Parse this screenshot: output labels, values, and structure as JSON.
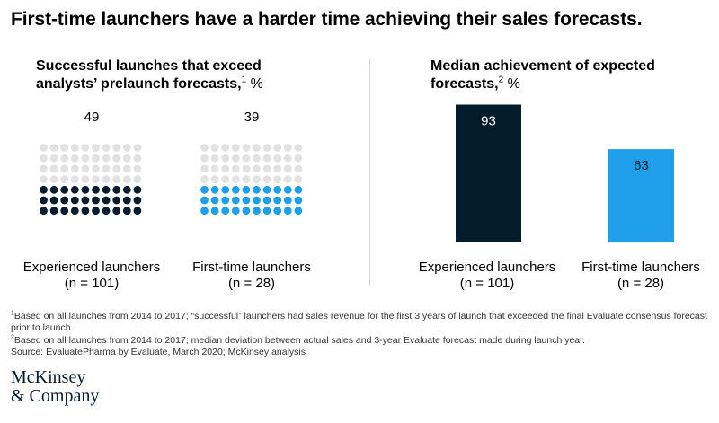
{
  "headline": "First-time launchers have a harder time achieving their sales forecasts.",
  "colors": {
    "dark": "#051c2c",
    "blue": "#1f9fe9",
    "grey": "#e2e2e2",
    "divider": "#d9d9d9"
  },
  "chart_data": [
    {
      "type": "dot-matrix",
      "title": "Successful launches that exceed analysts’ prelaunch forecasts,",
      "title_sup": "1",
      "unit": "%",
      "total_dots": 70,
      "series": [
        {
          "name": "Experienced launchers",
          "n_label": "(n = 101)",
          "value": 49,
          "value_label": "49",
          "color": "#051c2c"
        },
        {
          "name": "First-time launchers",
          "n_label": "(n = 28)",
          "value": 39,
          "value_label": "39",
          "color": "#1f9fe9"
        }
      ]
    },
    {
      "type": "bar",
      "title": "Median achievement of expected forecasts,",
      "title_sup": "2",
      "unit": "%",
      "categories": [
        "Experienced launchers",
        "First-time launchers"
      ],
      "n_labels": [
        "(n = 101)",
        "(n = 28)"
      ],
      "values": [
        93,
        63
      ],
      "value_labels": [
        "93",
        "63"
      ],
      "colors": [
        "#051c2c",
        "#1f9fe9"
      ]
    }
  ],
  "footnotes": {
    "note1_sup": "1",
    "note1": "Based on all launches from 2014 to 2017; “successful” launchers had sales revenue for the first 3 years of launch that exceeded the final Evaluate consensus forecast prior to launch.",
    "note2_sup": "2",
    "note2": "Based on all launches from 2014 to 2017; median deviation between actual sales and 3-year Evaluate forecast made during launch year.",
    "source": "Source: EvaluatePharma by Evaluate, March 2020; McKinsey analysis"
  },
  "logo": {
    "line1": "McKinsey",
    "line2": "& Company"
  }
}
